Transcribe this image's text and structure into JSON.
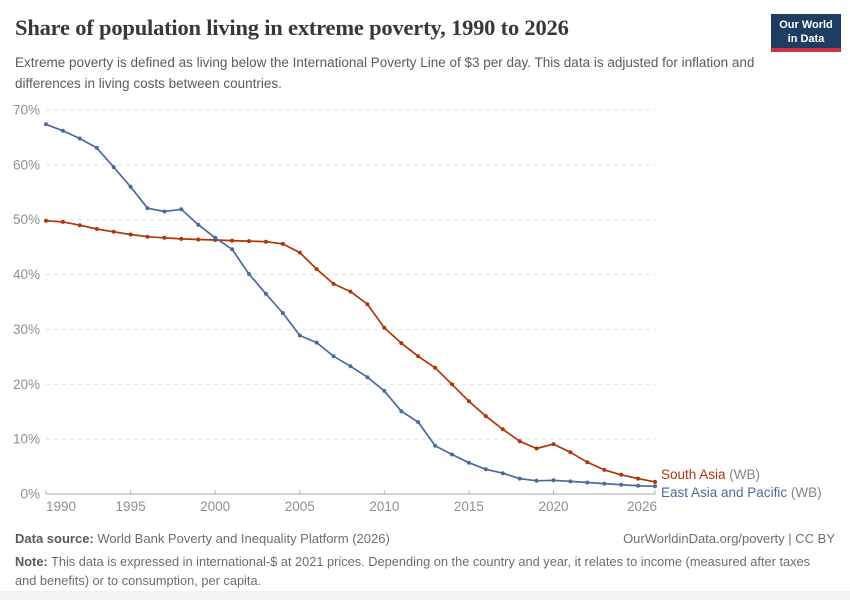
{
  "header": {
    "title": "Share of population living in extreme poverty, 1990 to 2026",
    "subtitle": "Extreme poverty is defined as living below the International Poverty Line of $3 per day. This data is adjusted for inflation and differences in living costs between countries.",
    "logo": {
      "line1": "Our World",
      "line2": "in Data",
      "bg_color": "#1d3d63",
      "bar_color": "#cf3342"
    }
  },
  "chart_data": {
    "type": "line",
    "title": "Share of population living in extreme poverty, 1990 to 2026",
    "xlabel": "",
    "ylabel": "",
    "xlim": [
      1990,
      2026
    ],
    "ylim": [
      0,
      70
    ],
    "grid": "horizontal-dashed",
    "legend_position": "right-of-line-ends",
    "xticks": [
      1990,
      1995,
      2000,
      2005,
      2010,
      2015,
      2020,
      2026
    ],
    "yticks": [
      0,
      10,
      20,
      30,
      40,
      50,
      60,
      70
    ],
    "ytick_suffix": "%",
    "x": [
      1990,
      1991,
      1992,
      1993,
      1994,
      1995,
      1996,
      1997,
      1998,
      1999,
      2000,
      2001,
      2002,
      2003,
      2004,
      2005,
      2006,
      2007,
      2008,
      2009,
      2010,
      2011,
      2012,
      2013,
      2014,
      2015,
      2016,
      2017,
      2018,
      2019,
      2020,
      2021,
      2022,
      2023,
      2024,
      2025,
      2026
    ],
    "series": [
      {
        "name": "South Asia (WB)",
        "label": "South Asia",
        "suffix": " (WB)",
        "color": "#b13507",
        "values": [
          49.8,
          49.6,
          49.0,
          48.3,
          47.8,
          47.3,
          46.9,
          46.7,
          46.5,
          46.4,
          46.3,
          46.2,
          46.1,
          46.0,
          45.6,
          44.0,
          41.0,
          38.3,
          36.9,
          34.6,
          30.3,
          27.5,
          25.1,
          23.0,
          20.0,
          16.9,
          14.2,
          11.8,
          9.6,
          8.3,
          9.1,
          7.6,
          5.8,
          4.4,
          3.5,
          2.8,
          2.2
        ]
      },
      {
        "name": "East Asia and Pacific (WB)",
        "label": "East Asia and Pacific",
        "suffix": " (WB)",
        "color": "#4c6a9c",
        "values": [
          67.4,
          66.2,
          64.8,
          63.1,
          59.6,
          56.0,
          52.1,
          51.5,
          51.9,
          49.1,
          46.7,
          44.6,
          40.1,
          36.5,
          33.0,
          28.9,
          27.6,
          25.1,
          23.3,
          21.3,
          18.8,
          15.1,
          13.1,
          8.8,
          7.2,
          5.7,
          4.5,
          3.8,
          2.8,
          2.4,
          2.5,
          2.3,
          2.1,
          1.9,
          1.7,
          1.5,
          1.4
        ]
      }
    ]
  },
  "footer": {
    "datasource_label": "Data source:",
    "datasource_text": " World Bank Poverty and Inequality Platform (2026)",
    "link_text": "OurWorldinData.org/poverty | CC BY",
    "note_label": "Note:",
    "note_text": " This data is expressed in international-$ at 2021 prices. Depending on the country and year, it relates to income (measured after taxes and benefits) or to consumption, per capita."
  }
}
